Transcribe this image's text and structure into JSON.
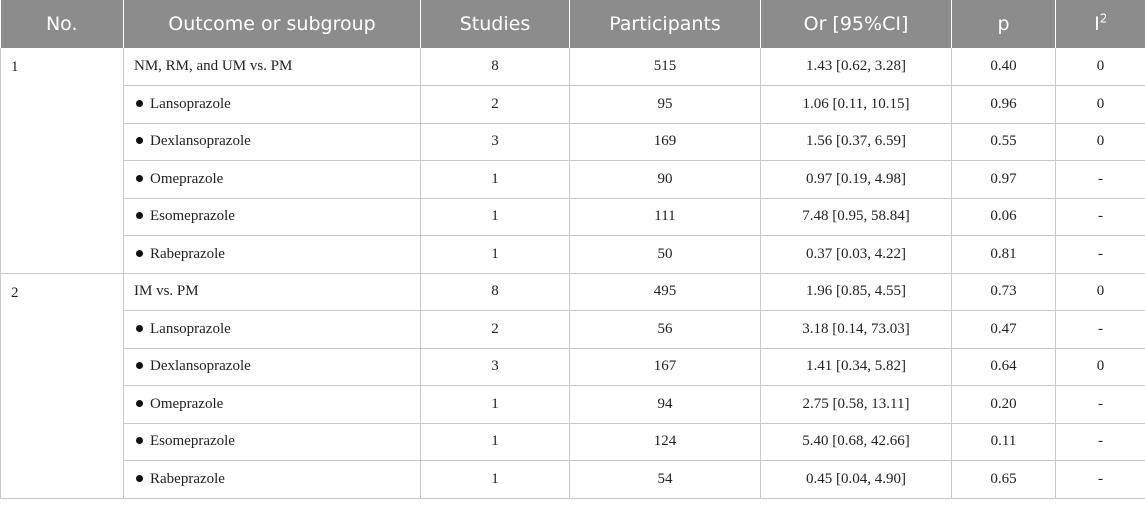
{
  "header": {
    "no": "No.",
    "subgroup": "Outcome or subgroup",
    "studies": "Studies",
    "participants": "Participants",
    "or": "Or [95%CI]",
    "p": "p",
    "i2_base": "I",
    "i2_sup": "2"
  },
  "groups": [
    {
      "no": "1",
      "rows": [
        {
          "label": "NM, RM, and UM vs. PM",
          "bullet": false,
          "studies": "8",
          "participants": "515",
          "or": "1.43 [0.62, 3.28]",
          "p": "0.40",
          "i2": "0"
        },
        {
          "label": "Lansoprazole",
          "bullet": true,
          "studies": "2",
          "participants": "95",
          "or": "1.06 [0.11, 10.15]",
          "p": "0.96",
          "i2": "0"
        },
        {
          "label": "Dexlansoprazole",
          "bullet": true,
          "studies": "3",
          "participants": "169",
          "or": "1.56 [0.37, 6.59]",
          "p": "0.55",
          "i2": "0"
        },
        {
          "label": "Omeprazole",
          "bullet": true,
          "studies": "1",
          "participants": "90",
          "or": "0.97 [0.19, 4.98]",
          "p": "0.97",
          "i2": "-"
        },
        {
          "label": "Esomeprazole",
          "bullet": true,
          "studies": "1",
          "participants": "111",
          "or": "7.48 [0.95, 58.84]",
          "p": "0.06",
          "i2": "-"
        },
        {
          "label": "Rabeprazole",
          "bullet": true,
          "studies": "1",
          "participants": "50",
          "or": "0.37 [0.03, 4.22]",
          "p": "0.81",
          "i2": "-"
        }
      ]
    },
    {
      "no": "2",
      "rows": [
        {
          "label": "IM vs. PM",
          "bullet": false,
          "studies": "8",
          "participants": "495",
          "or": "1.96 [0.85, 4.55]",
          "p": "0.73",
          "i2": "0"
        },
        {
          "label": "Lansoprazole",
          "bullet": true,
          "studies": "2",
          "participants": "56",
          "or": "3.18 [0.14, 73.03]",
          "p": "0.47",
          "i2": "-"
        },
        {
          "label": "Dexlansoprazole",
          "bullet": true,
          "studies": "3",
          "participants": "167",
          "or": "1.41 [0.34, 5.82]",
          "p": "0.64",
          "i2": "0"
        },
        {
          "label": "Omeprazole",
          "bullet": true,
          "studies": "1",
          "participants": "94",
          "or": "2.75 [0.58, 13.11]",
          "p": "0.20",
          "i2": "-"
        },
        {
          "label": "Esomeprazole",
          "bullet": true,
          "studies": "1",
          "participants": "124",
          "or": "5.40 [0.68, 42.66]",
          "p": "0.11",
          "i2": "-"
        },
        {
          "label": "Rabeprazole",
          "bullet": true,
          "studies": "1",
          "participants": "54",
          "or": "0.45 [0.04, 4.90]",
          "p": "0.65",
          "i2": "-"
        }
      ]
    }
  ]
}
